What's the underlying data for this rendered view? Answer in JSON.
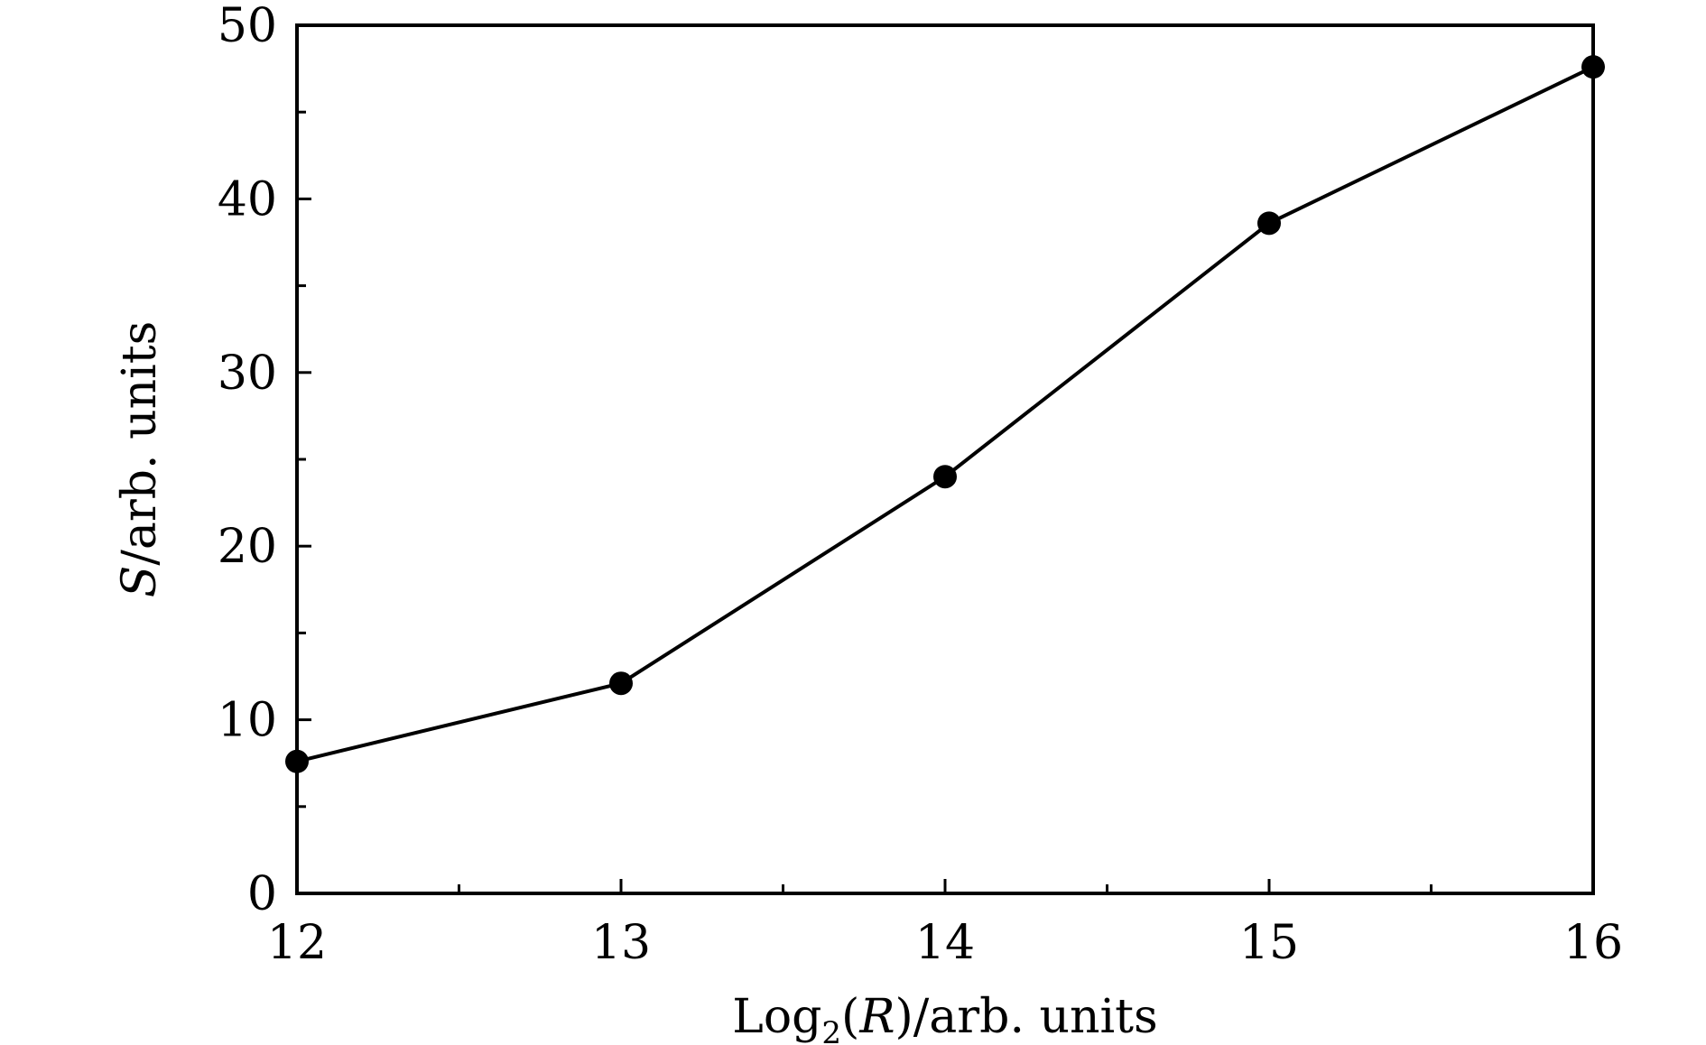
{
  "chart_data": {
    "type": "line",
    "title": "",
    "xlabel": {
      "prefix": "Log",
      "sub": "2",
      "open": "(",
      "var": "R",
      "rest": ")/arb. units"
    },
    "ylabel": {
      "var": "S",
      "rest": "/arb. units"
    },
    "xlim": [
      12,
      16
    ],
    "ylim": [
      0,
      50
    ],
    "xticks": [
      12,
      13,
      14,
      15,
      16
    ],
    "yticks": [
      0,
      10,
      20,
      30,
      40,
      50
    ],
    "xminor": [
      12.5,
      13.5,
      14.5,
      15.5
    ],
    "yminor": [
      5,
      15,
      25,
      35,
      45
    ],
    "grid": false,
    "legend": "none",
    "colors": {
      "line": "#000000",
      "marker": "#000000",
      "axes": "#000000"
    },
    "series": [
      {
        "x": [
          12,
          13,
          14,
          15,
          16
        ],
        "y": [
          7.6,
          12.1,
          24.0,
          38.6,
          47.6
        ]
      }
    ]
  }
}
